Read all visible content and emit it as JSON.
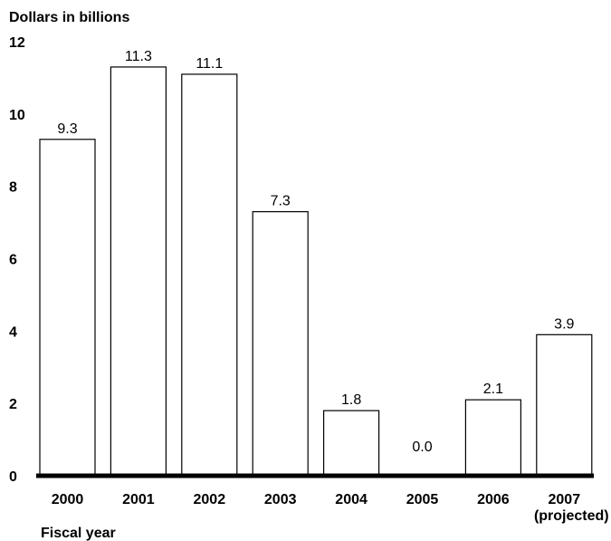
{
  "chart_data": {
    "type": "bar",
    "ylabel": "Dollars in billions",
    "xlabel": "Fiscal year",
    "categories": [
      [
        "2000"
      ],
      [
        "2001"
      ],
      [
        "2002"
      ],
      [
        "2003"
      ],
      [
        "2004"
      ],
      [
        "2005"
      ],
      [
        "2006"
      ],
      [
        "2007",
        "(projected)"
      ]
    ],
    "values": [
      9.3,
      11.3,
      11.1,
      7.3,
      1.8,
      0.0,
      2.1,
      3.9
    ],
    "value_labels": [
      "9.3",
      "11.3",
      "11.1",
      "7.3",
      "1.8",
      "0.0",
      "2.1",
      "3.9"
    ],
    "ylim": [
      0,
      12
    ],
    "yticks": [
      0,
      2,
      4,
      6,
      8,
      10,
      12
    ],
    "grid": false,
    "legend": "none",
    "colors": {
      "bar_fill": "#ffffff",
      "bar_stroke": "#000000"
    }
  }
}
